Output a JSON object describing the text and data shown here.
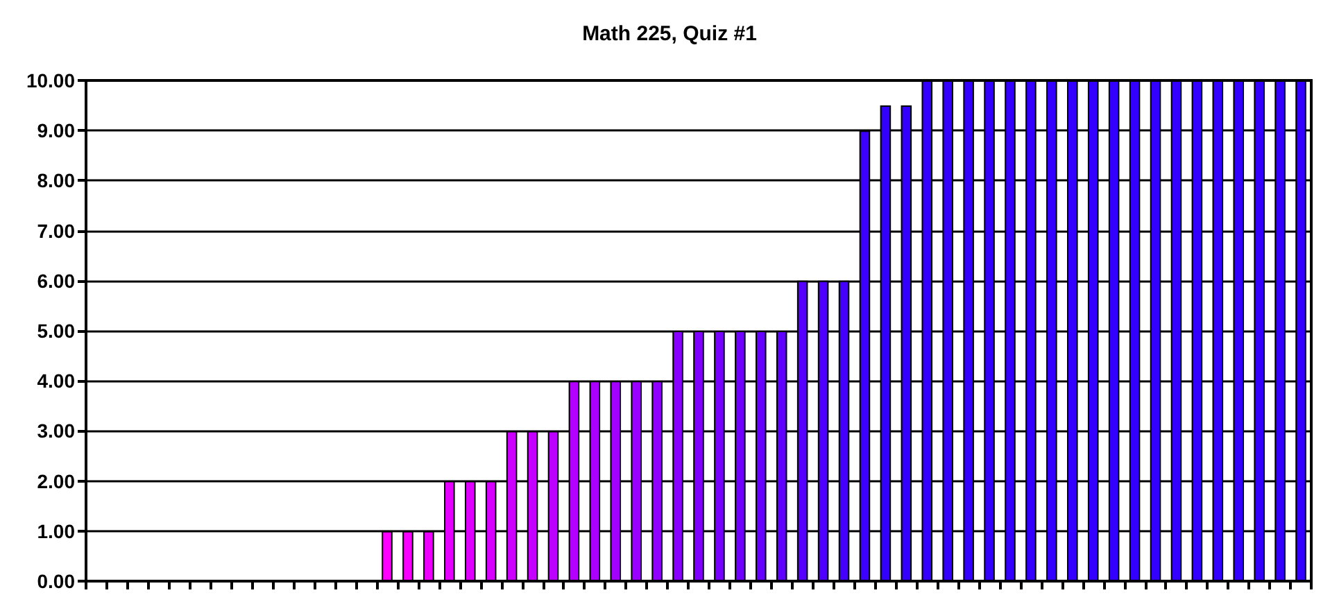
{
  "chart_data": {
    "type": "bar",
    "title": "Math 225, Quiz #1",
    "categories": [
      null,
      null,
      null,
      null,
      null,
      null,
      null,
      null,
      null,
      null,
      null,
      null,
      null,
      null,
      null,
      null,
      null,
      null,
      null,
      null,
      null,
      null,
      null,
      null,
      null,
      null,
      null,
      null,
      null,
      null,
      null,
      null,
      null,
      null,
      null,
      null,
      null,
      null,
      null,
      null,
      null,
      null,
      null,
      null,
      null,
      null,
      null,
      null,
      null,
      null,
      null,
      null,
      null,
      null,
      null,
      null,
      null,
      null,
      null
    ],
    "values": [
      0,
      0,
      0,
      0,
      0,
      0,
      0,
      0,
      0,
      0,
      0,
      0,
      0,
      0,
      1,
      1,
      1,
      2,
      2,
      2,
      3,
      3,
      3,
      4,
      4,
      4,
      4,
      4,
      5,
      5,
      5,
      5,
      5,
      5,
      6,
      6,
      6,
      9,
      9.5,
      9.5,
      10,
      10,
      10,
      10,
      10,
      10,
      10,
      10,
      10,
      10,
      10,
      10,
      10,
      10,
      10,
      10,
      10,
      10,
      10
    ],
    "colors": [
      "#ff00ff",
      "#ff00ff",
      "#ff00ff",
      "#ff00ff",
      "#ff00ff",
      "#ff00ff",
      "#ff00ff",
      "#ff00ff",
      "#ff00ff",
      "#ff00ff",
      "#ff00ff",
      "#ff00ff",
      "#ff00ff",
      "#ff00ff",
      "#ff00ff",
      "#f700ff",
      "#ee00ff",
      "#e600ff",
      "#dd00ff",
      "#d500ff",
      "#cc00ff",
      "#c400ff",
      "#bb00ff",
      "#b300ff",
      "#aa00ff",
      "#a200ff",
      "#9900ff",
      "#9100ff",
      "#8800ff",
      "#8000ff",
      "#7700ff",
      "#6f00ff",
      "#6600ff",
      "#5e00ff",
      "#5500ff",
      "#4d00ff",
      "#4400ff",
      "#3c00ff",
      "#3300ff",
      "#3300ff",
      "#3300ff",
      "#3300ff",
      "#3300ff",
      "#3300ff",
      "#3300ff",
      "#3300ff",
      "#3300ff",
      "#3300ff",
      "#3300ff",
      "#3300ff",
      "#3300ff",
      "#3300ff",
      "#3300ff",
      "#3300ff",
      "#3300ff",
      "#3300ff",
      "#3300ff",
      "#3300ff",
      "#3300ff"
    ],
    "ylim": [
      0,
      10
    ],
    "yticks": [
      {
        "value": 0,
        "label": "0.00"
      },
      {
        "value": 1,
        "label": "1.00"
      },
      {
        "value": 2,
        "label": "2.00"
      },
      {
        "value": 3,
        "label": "3.00"
      },
      {
        "value": 4,
        "label": "4.00"
      },
      {
        "value": 5,
        "label": "5.00"
      },
      {
        "value": 6,
        "label": "6.00"
      },
      {
        "value": 7,
        "label": "7.00"
      },
      {
        "value": 8,
        "label": "8.00"
      },
      {
        "value": 9,
        "label": "9.00"
      },
      {
        "value": 10,
        "label": "10.00"
      }
    ],
    "grid": "y"
  }
}
